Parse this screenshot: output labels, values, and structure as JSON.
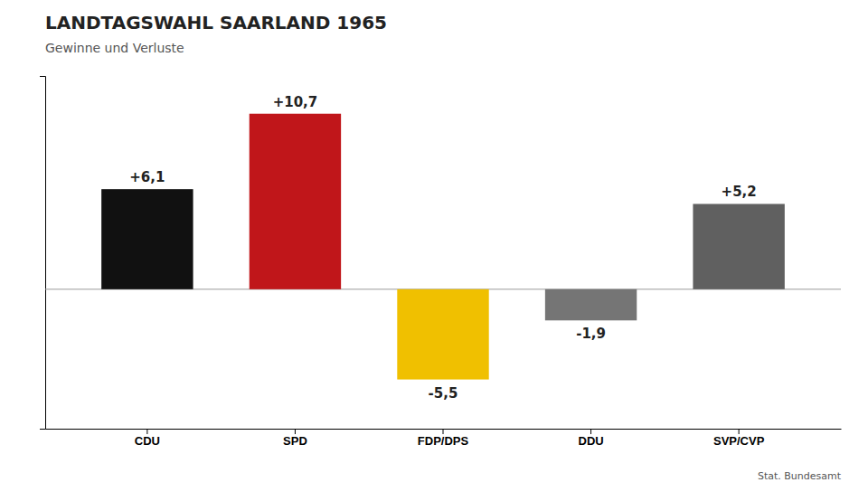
{
  "chart_data": {
    "type": "bar",
    "title": "LANDTAGSWAHL SAARLAND 1965",
    "subtitle": "Gewinne und Verluste",
    "source": "Stat. Bundesamt",
    "categories": [
      "CDU",
      "SPD",
      "FDP/DPS",
      "DDU",
      "SVP/CVP"
    ],
    "values": [
      6.1,
      10.7,
      -5.5,
      -1.9,
      5.2
    ],
    "value_labels": [
      "+6,1",
      "+10,7",
      "-5,5",
      "-1,9",
      "+5,2"
    ],
    "colors": [
      "#111111",
      "#c0161a",
      "#f0c000",
      "#757575",
      "#606060"
    ],
    "ylim": [
      -8.5,
      13.0
    ],
    "yticks": [],
    "tick_labels": "x",
    "data_labels": true,
    "grid": false
  }
}
